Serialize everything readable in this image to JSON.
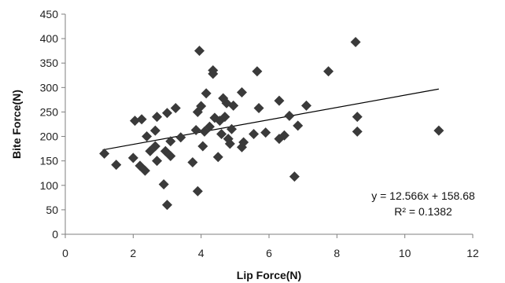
{
  "chart_data": {
    "type": "scatter",
    "title": "",
    "xlabel": "Lip Force(N)",
    "ylabel": "Bite Force(N)",
    "xlim": [
      0,
      12
    ],
    "ylim": [
      0,
      450
    ],
    "x_ticks": [
      0,
      2,
      4,
      6,
      8,
      10,
      12
    ],
    "y_ticks": [
      0,
      50,
      100,
      150,
      200,
      250,
      300,
      350,
      400,
      450
    ],
    "grid": false,
    "marker": "diamond",
    "marker_color": "#3a3a3a",
    "points": [
      {
        "x": 1.15,
        "y": 165
      },
      {
        "x": 1.5,
        "y": 142
      },
      {
        "x": 2.0,
        "y": 156
      },
      {
        "x": 2.05,
        "y": 232
      },
      {
        "x": 2.2,
        "y": 140
      },
      {
        "x": 2.25,
        "y": 235
      },
      {
        "x": 2.35,
        "y": 130
      },
      {
        "x": 2.4,
        "y": 200
      },
      {
        "x": 2.5,
        "y": 170
      },
      {
        "x": 2.65,
        "y": 212
      },
      {
        "x": 2.65,
        "y": 180
      },
      {
        "x": 2.7,
        "y": 150
      },
      {
        "x": 2.7,
        "y": 240
      },
      {
        "x": 2.9,
        "y": 102
      },
      {
        "x": 2.95,
        "y": 170
      },
      {
        "x": 3.0,
        "y": 60
      },
      {
        "x": 3.0,
        "y": 248
      },
      {
        "x": 3.1,
        "y": 160
      },
      {
        "x": 3.1,
        "y": 190
      },
      {
        "x": 3.25,
        "y": 258
      },
      {
        "x": 3.4,
        "y": 198
      },
      {
        "x": 3.75,
        "y": 147
      },
      {
        "x": 3.85,
        "y": 213
      },
      {
        "x": 3.9,
        "y": 250
      },
      {
        "x": 3.9,
        "y": 88
      },
      {
        "x": 3.95,
        "y": 375
      },
      {
        "x": 4.0,
        "y": 262
      },
      {
        "x": 4.05,
        "y": 180
      },
      {
        "x": 4.1,
        "y": 210
      },
      {
        "x": 4.15,
        "y": 288
      },
      {
        "x": 4.25,
        "y": 220
      },
      {
        "x": 4.35,
        "y": 335
      },
      {
        "x": 4.35,
        "y": 328
      },
      {
        "x": 4.4,
        "y": 238
      },
      {
        "x": 4.5,
        "y": 158
      },
      {
        "x": 4.55,
        "y": 232
      },
      {
        "x": 4.6,
        "y": 205
      },
      {
        "x": 4.65,
        "y": 278
      },
      {
        "x": 4.7,
        "y": 240
      },
      {
        "x": 4.75,
        "y": 268
      },
      {
        "x": 4.8,
        "y": 195
      },
      {
        "x": 4.85,
        "y": 185
      },
      {
        "x": 4.9,
        "y": 215
      },
      {
        "x": 4.95,
        "y": 263
      },
      {
        "x": 5.2,
        "y": 290
      },
      {
        "x": 5.2,
        "y": 178
      },
      {
        "x": 5.25,
        "y": 188
      },
      {
        "x": 5.55,
        "y": 205
      },
      {
        "x": 5.65,
        "y": 333
      },
      {
        "x": 5.7,
        "y": 258
      },
      {
        "x": 5.9,
        "y": 208
      },
      {
        "x": 6.3,
        "y": 273
      },
      {
        "x": 6.3,
        "y": 195
      },
      {
        "x": 6.45,
        "y": 202
      },
      {
        "x": 6.6,
        "y": 242
      },
      {
        "x": 6.75,
        "y": 118
      },
      {
        "x": 6.85,
        "y": 222
      },
      {
        "x": 7.1,
        "y": 263
      },
      {
        "x": 7.75,
        "y": 333
      },
      {
        "x": 8.55,
        "y": 393
      },
      {
        "x": 8.6,
        "y": 240
      },
      {
        "x": 8.6,
        "y": 210
      },
      {
        "x": 11.0,
        "y": 212
      }
    ],
    "trendline": {
      "type": "linear",
      "slope": 12.566,
      "intercept": 158.68,
      "x_from": 1.1,
      "x_to": 11.0,
      "color": "#000000"
    },
    "annotations": {
      "equation": "y = 12.566x + 158.68",
      "r_squared": "R² = 0.1382"
    }
  }
}
